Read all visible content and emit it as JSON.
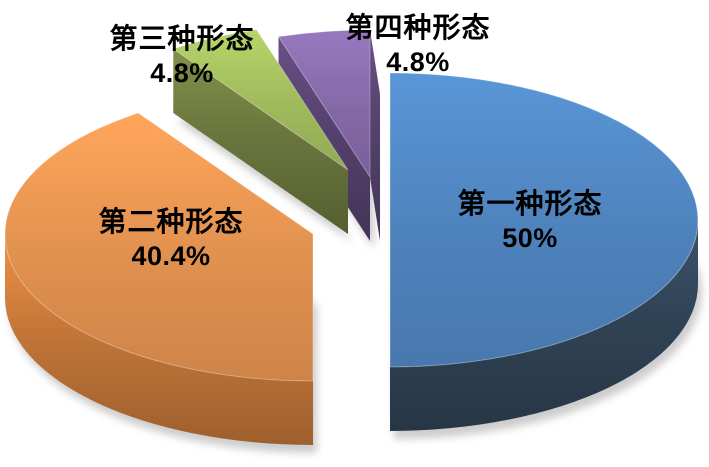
{
  "chart_data": {
    "type": "pie",
    "style": "3d-exploded-pie",
    "background": "#FFFFFF",
    "text_color": "#000000",
    "start_angle_deg": -90,
    "direction": "clockwise",
    "legend": "none",
    "categories": [
      "第一种形态",
      "第二种形态",
      "第三种形态",
      "第四种形态"
    ],
    "values": [
      50,
      40.4,
      4.8,
      4.8
    ],
    "slices": [
      {
        "label": "第一种形态",
        "value_pct": 50,
        "value_label": "50%",
        "color_top": "#4E82BC",
        "color_side": "#2F4254"
      },
      {
        "label": "第二种形态",
        "value_pct": 40.4,
        "value_label": "40.4%",
        "color_top": "#E0904F",
        "color_side": "#C07437"
      },
      {
        "label": "第三种形态",
        "value_pct": 4.8,
        "value_label": "4.8%",
        "color_top": "#9FB95C",
        "color_side": "#68743C"
      },
      {
        "label": "第四种形态",
        "value_pct": 4.8,
        "value_label": "4.8%",
        "color_top": "#8468A6",
        "color_side": "#53406B"
      }
    ]
  }
}
